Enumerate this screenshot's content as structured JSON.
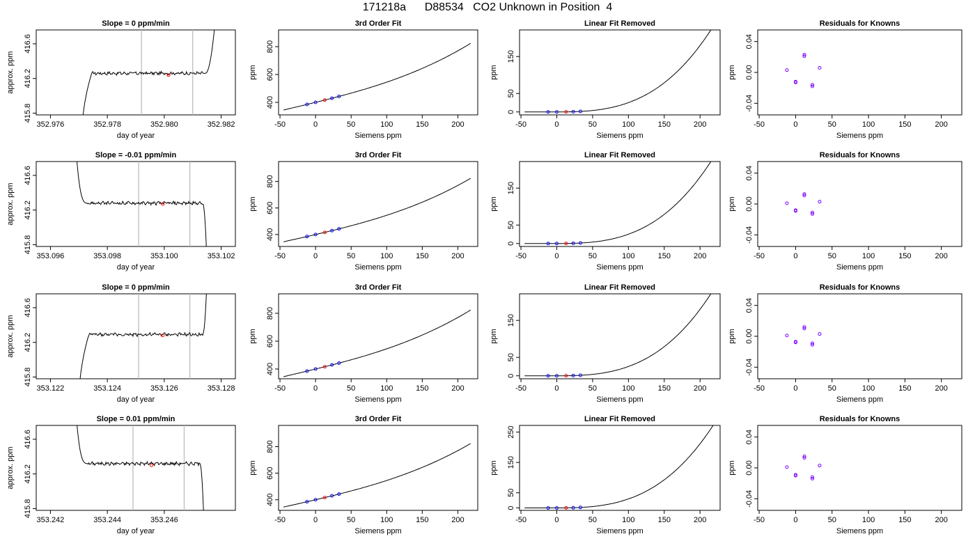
{
  "title": "171218a      D88534   CO2 Unknown in Position  4",
  "chart_data": [
    {
      "type": "line",
      "title": "Slope =  0  ppm/min",
      "xlabel": "day of year",
      "ylabel": "approx. ppm",
      "xlim": [
        352.9755,
        352.9825
      ],
      "ylim": [
        415.78,
        416.76
      ],
      "xticks": [
        352.976,
        352.978,
        352.98,
        352.982
      ],
      "xtick_labels": [
        "352.976",
        "352.978",
        "352.980",
        "352.982"
      ],
      "yticks": [
        415.8,
        416.2,
        416.6
      ],
      "ytick_labels": [
        "415.8",
        "416.2",
        "416.6"
      ],
      "vlines": [
        352.9792,
        352.981
      ],
      "marker": {
        "x": 352.98015,
        "y": 416.24
      },
      "trace": {
        "x0": 352.9771,
        "xr": 352.97745,
        "xe": 352.98145,
        "xf": 352.9818,
        "level": 416.26,
        "end": 416.9
      }
    },
    {
      "type": "line",
      "title": "3rd Order Fit",
      "xlabel": "Siemens ppm",
      "ylabel": "ppm",
      "xlim": [
        -52,
        228
      ],
      "ylim": [
        310,
        920
      ],
      "xticks": [
        -50,
        0,
        50,
        100,
        150,
        200
      ],
      "xtick_labels": [
        "-50",
        "0",
        "50",
        "100",
        "150",
        "200"
      ],
      "yticks": [
        400,
        600,
        800
      ],
      "ytick_labels": [
        "400",
        "600",
        "800"
      ],
      "curve": {
        "x_min": -45,
        "x_max": 218,
        "coef": [
          400,
          1.25,
          0.001,
          1e-05
        ]
      },
      "known_points_x": [
        -12,
        0,
        23,
        33
      ],
      "unknown_x": 13
    },
    {
      "type": "line",
      "title": "Linear Fit Removed",
      "xlabel": "Siemens ppm",
      "ylabel": "ppm",
      "xlim": [
        -52,
        228
      ],
      "ylim": [
        -8,
        222
      ],
      "xticks": [
        -50,
        0,
        50,
        100,
        150,
        200
      ],
      "xtick_labels": [
        "-50",
        "0",
        "50",
        "100",
        "150",
        "200"
      ],
      "yticks": [
        0,
        50,
        150
      ],
      "ytick_labels": [
        "0",
        "50",
        "150"
      ],
      "curve": {
        "x_min": -45,
        "x_max": 218,
        "cubic": 2e-05
      },
      "known_points_x": [
        -12,
        0,
        23,
        33
      ],
      "unknown_x": 13
    },
    {
      "type": "scatter",
      "title": "Residuals for Knowns",
      "xlabel": "Siemens ppm",
      "ylabel": "ppm",
      "xlim": [
        -52,
        228
      ],
      "ylim": [
        -0.055,
        0.055
      ],
      "xticks": [
        -50,
        0,
        50,
        100,
        150,
        200
      ],
      "xtick_labels": [
        "-50",
        "0",
        "50",
        "100",
        "150",
        "200"
      ],
      "yticks": [
        -0.04,
        0,
        0.04
      ],
      "ytick_labels": [
        "-0.04",
        "0.00",
        "0.04"
      ],
      "points": [
        {
          "x": -12,
          "y": 0.003
        },
        {
          "x": 0,
          "y": -0.012
        },
        {
          "x": 0,
          "y": -0.013
        },
        {
          "x": 12,
          "y": 0.023
        },
        {
          "x": 12,
          "y": 0.021
        },
        {
          "x": 23,
          "y": -0.016
        },
        {
          "x": 23,
          "y": -0.018
        },
        {
          "x": 33,
          "y": 0.006
        }
      ]
    },
    {
      "type": "line",
      "title": "Slope =  -0.01  ppm/min",
      "xlabel": "day of year",
      "ylabel": "approx. ppm",
      "xlim": [
        353.0955,
        353.1025
      ],
      "ylim": [
        415.78,
        416.76
      ],
      "xticks": [
        353.096,
        353.098,
        353.1,
        353.102
      ],
      "xtick_labels": [
        "353.096",
        "353.098",
        "353.100",
        "353.102"
      ],
      "yticks": [
        415.8,
        416.2,
        416.6
      ],
      "ytick_labels": [
        "415.8",
        "416.2",
        "416.6"
      ],
      "vlines": [
        353.0991,
        353.1009
      ],
      "marker": {
        "x": 353.09995,
        "y": 416.27
      },
      "trace": {
        "x0": 353.0969,
        "xr": 353.0973,
        "xe": 353.10135,
        "xf": 353.1015,
        "level": 416.28,
        "start": 416.9,
        "end": 415.6
      }
    },
    {
      "type": "line",
      "title": "3rd Order Fit",
      "xlabel": "Siemens ppm",
      "ylabel": "ppm",
      "xlim": [
        -52,
        228
      ],
      "ylim": [
        310,
        950
      ],
      "xticks": [
        -50,
        0,
        50,
        100,
        150,
        200
      ],
      "xtick_labels": [
        "-50",
        "0",
        "50",
        "100",
        "150",
        "200"
      ],
      "yticks": [
        400,
        600,
        800
      ],
      "ytick_labels": [
        "400",
        "600",
        "800"
      ],
      "curve": {
        "x_min": -45,
        "x_max": 218,
        "coef": [
          400,
          1.25,
          0.001,
          1e-05
        ]
      },
      "known_points_x": [
        -12,
        0,
        23,
        33
      ],
      "unknown_x": 13
    },
    {
      "type": "line",
      "title": "Linear Fit Removed",
      "xlabel": "Siemens ppm",
      "ylabel": "ppm",
      "xlim": [
        -52,
        228
      ],
      "ylim": [
        -8,
        222
      ],
      "xticks": [
        -50,
        0,
        50,
        100,
        150,
        200
      ],
      "xtick_labels": [
        "-50",
        "0",
        "50",
        "100",
        "150",
        "200"
      ],
      "yticks": [
        0,
        50,
        150
      ],
      "ytick_labels": [
        "0",
        "50",
        "150"
      ],
      "curve": {
        "x_min": -45,
        "x_max": 218,
        "cubic": 2e-05
      },
      "known_points_x": [
        -12,
        0,
        23,
        33
      ],
      "unknown_x": 13
    },
    {
      "type": "scatter",
      "title": "Residuals for Knowns",
      "xlabel": "Siemens ppm",
      "ylabel": "ppm",
      "xlim": [
        -52,
        228
      ],
      "ylim": [
        -0.055,
        0.055
      ],
      "xticks": [
        -50,
        0,
        50,
        100,
        150,
        200
      ],
      "xtick_labels": [
        "-50",
        "0",
        "50",
        "100",
        "150",
        "200"
      ],
      "yticks": [
        -0.04,
        0,
        0.04
      ],
      "ytick_labels": [
        "-0.04",
        "0.00",
        "0.04"
      ],
      "points": [
        {
          "x": -12,
          "y": 0.001
        },
        {
          "x": 0,
          "y": -0.008
        },
        {
          "x": 0,
          "y": -0.009
        },
        {
          "x": 12,
          "y": 0.013
        },
        {
          "x": 12,
          "y": 0.011
        },
        {
          "x": 23,
          "y": -0.011
        },
        {
          "x": 23,
          "y": -0.013
        },
        {
          "x": 33,
          "y": 0.003
        }
      ]
    },
    {
      "type": "line",
      "title": "Slope =  0  ppm/min",
      "xlabel": "day of year",
      "ylabel": "approx. ppm",
      "xlim": [
        353.1215,
        353.1285
      ],
      "ylim": [
        415.78,
        416.76
      ],
      "xticks": [
        353.122,
        353.124,
        353.126,
        353.128
      ],
      "xtick_labels": [
        "353.122",
        "353.124",
        "353.126",
        "353.128"
      ],
      "yticks": [
        415.8,
        416.2,
        416.6
      ],
      "ytick_labels": [
        "415.8",
        "416.2",
        "416.6"
      ],
      "vlines": [
        353.1251,
        353.1269
      ],
      "marker": {
        "x": 353.12595,
        "y": 416.28
      },
      "trace": {
        "x0": 353.123,
        "xr": 353.12335,
        "xe": 353.12735,
        "xf": 353.1275,
        "level": 416.29,
        "end": 416.9
      }
    },
    {
      "type": "line",
      "title": "3rd Order Fit",
      "xlabel": "Siemens ppm",
      "ylabel": "ppm",
      "xlim": [
        -52,
        228
      ],
      "ylim": [
        330,
        940
      ],
      "xticks": [
        -50,
        0,
        50,
        100,
        150,
        200
      ],
      "xtick_labels": [
        "-50",
        "0",
        "50",
        "100",
        "150",
        "200"
      ],
      "yticks": [
        400,
        600,
        800
      ],
      "ytick_labels": [
        "400",
        "600",
        "800"
      ],
      "curve": {
        "x_min": -45,
        "x_max": 218,
        "coef": [
          400,
          1.25,
          0.001,
          1e-05
        ]
      },
      "known_points_x": [
        -12,
        0,
        23,
        33
      ],
      "unknown_x": 13
    },
    {
      "type": "line",
      "title": "Linear Fit Removed",
      "xlabel": "Siemens ppm",
      "ylabel": "ppm",
      "xlim": [
        -52,
        228
      ],
      "ylim": [
        -8,
        222
      ],
      "xticks": [
        -50,
        0,
        50,
        100,
        150,
        200
      ],
      "xtick_labels": [
        "-50",
        "0",
        "50",
        "100",
        "150",
        "200"
      ],
      "yticks": [
        0,
        50,
        150
      ],
      "ytick_labels": [
        "0",
        "50",
        "150"
      ],
      "curve": {
        "x_min": -45,
        "x_max": 218,
        "cubic": 2e-05
      },
      "known_points_x": [
        -12,
        0,
        23,
        33
      ],
      "unknown_x": 13
    },
    {
      "type": "scatter",
      "title": "Residuals for Knowns",
      "xlabel": "Siemens ppm",
      "ylabel": "ppm",
      "xlim": [
        -52,
        228
      ],
      "ylim": [
        -0.055,
        0.055
      ],
      "xticks": [
        -50,
        0,
        50,
        100,
        150,
        200
      ],
      "xtick_labels": [
        "-50",
        "0",
        "50",
        "100",
        "150",
        "200"
      ],
      "yticks": [
        -0.04,
        0,
        0.04
      ],
      "ytick_labels": [
        "-0.04",
        "0.00",
        "0.04"
      ],
      "points": [
        {
          "x": -12,
          "y": 0.001
        },
        {
          "x": 0,
          "y": -0.007
        },
        {
          "x": 0,
          "y": -0.008
        },
        {
          "x": 12,
          "y": 0.012
        },
        {
          "x": 12,
          "y": 0.01
        },
        {
          "x": 23,
          "y": -0.009
        },
        {
          "x": 23,
          "y": -0.011
        },
        {
          "x": 33,
          "y": 0.003
        }
      ]
    },
    {
      "type": "line",
      "title": "Slope =  0.01  ppm/min",
      "xlabel": "day of year",
      "ylabel": "approx. ppm",
      "xlim": [
        353.2415,
        353.2485
      ],
      "ylim": [
        415.78,
        416.76
      ],
      "xticks": [
        353.242,
        353.244,
        353.246
      ],
      "xtick_labels": [
        "353.242",
        "353.244",
        "353.246"
      ],
      "yticks": [
        415.8,
        416.2,
        416.6
      ],
      "ytick_labels": [
        "415.8",
        "416.2",
        "416.6"
      ],
      "vlines": [
        353.2449,
        353.2467
      ],
      "marker": {
        "x": 353.24555,
        "y": 416.3
      },
      "trace": {
        "x0": 353.2429,
        "xr": 353.2433,
        "xe": 353.24725,
        "xf": 353.2474,
        "level": 416.32,
        "start": 416.9,
        "end": 415.6
      }
    },
    {
      "type": "line",
      "title": "3rd Order Fit",
      "xlabel": "Siemens ppm",
      "ylabel": "ppm",
      "xlim": [
        -52,
        228
      ],
      "ylim": [
        320,
        960
      ],
      "xticks": [
        -50,
        0,
        50,
        100,
        150,
        200
      ],
      "xtick_labels": [
        "-50",
        "0",
        "50",
        "100",
        "150",
        "200"
      ],
      "yticks": [
        400,
        600,
        800
      ],
      "ytick_labels": [
        "400",
        "600",
        "800"
      ],
      "curve": {
        "x_min": -45,
        "x_max": 218,
        "coef": [
          400,
          1.25,
          0.001,
          1e-05
        ]
      },
      "known_points_x": [
        -12,
        0,
        23,
        33
      ],
      "unknown_x": 13
    },
    {
      "type": "line",
      "title": "Linear Fit Removed",
      "xlabel": "Siemens ppm",
      "ylabel": "ppm",
      "xlim": [
        -52,
        228
      ],
      "ylim": [
        -8,
        272
      ],
      "xticks": [
        -50,
        0,
        50,
        100,
        150,
        200
      ],
      "xtick_labels": [
        "-50",
        "0",
        "50",
        "100",
        "150",
        "200"
      ],
      "yticks": [
        0,
        50,
        150,
        250
      ],
      "ytick_labels": [
        "0",
        "50",
        "150",
        "250"
      ],
      "curve": {
        "x_min": -45,
        "x_max": 218,
        "cubic": 2.35e-05
      },
      "known_points_x": [
        -12,
        0,
        23,
        33
      ],
      "unknown_x": 13
    },
    {
      "type": "scatter",
      "title": "Residuals for Knowns",
      "xlabel": "Siemens ppm",
      "ylabel": "ppm",
      "xlim": [
        -52,
        228
      ],
      "ylim": [
        -0.055,
        0.055
      ],
      "xticks": [
        -50,
        0,
        50,
        100,
        150,
        200
      ],
      "xtick_labels": [
        "-50",
        "0",
        "50",
        "100",
        "150",
        "200"
      ],
      "yticks": [
        -0.04,
        0,
        0.04
      ],
      "ytick_labels": [
        "-0.04",
        "0.00",
        "0.04"
      ],
      "points": [
        {
          "x": -12,
          "y": 0.001
        },
        {
          "x": 0,
          "y": -0.009
        },
        {
          "x": 0,
          "y": -0.01
        },
        {
          "x": 12,
          "y": 0.015
        },
        {
          "x": 12,
          "y": 0.013
        },
        {
          "x": 23,
          "y": -0.012
        },
        {
          "x": 23,
          "y": -0.014
        },
        {
          "x": 33,
          "y": 0.003
        }
      ]
    }
  ],
  "colors": {
    "axis": "#000000",
    "line": "#000000",
    "vline": "#bdbdbd",
    "known": "#0000ff",
    "unknown": "#ff0000",
    "residual": "#7a00ff"
  }
}
